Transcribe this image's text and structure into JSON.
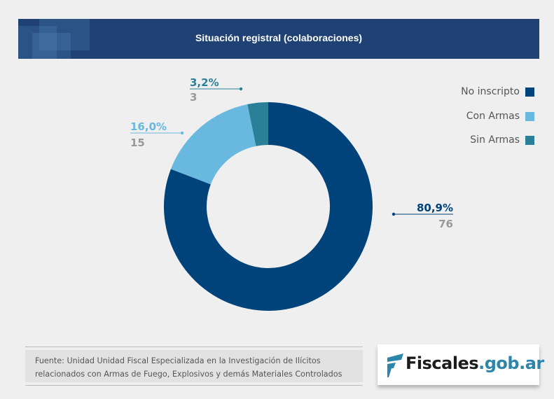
{
  "header": {
    "title": "Situación registral (colaboraciones)"
  },
  "chart_data": {
    "type": "pie",
    "variant": "donut",
    "title": "Situación registral (colaboraciones)",
    "legend_position": "top-right",
    "slices": [
      {
        "name": "No inscripto",
        "value": 76,
        "percent_label": "80,9%",
        "count_label": "76",
        "color": "#00427a"
      },
      {
        "name": "Con Armas",
        "value": 15,
        "percent_label": "16,0%",
        "count_label": "15",
        "color": "#69b8e0"
      },
      {
        "name": "Sin Armas",
        "value": 3,
        "percent_label": "3,2%",
        "count_label": "3",
        "color": "#2a8098"
      }
    ],
    "count_label_color": "#999999"
  },
  "legend": {
    "items": [
      {
        "label": "No inscripto",
        "color": "#00427a"
      },
      {
        "label": "Con Armas",
        "color": "#69b8e0"
      },
      {
        "label": "Sin Armas",
        "color": "#2a8098"
      }
    ]
  },
  "source": {
    "line1": "Fuente: Unidad Unidad Fiscal Especializada en la Investigación de Ilícitos",
    "line2": "relacionados con Armas de Fuego, Explosivos y demás Materiales Controlados"
  },
  "logo": {
    "part1": "Fiscales",
    "part2": ".gob.ar",
    "icon": "fiscales-f-logo-icon"
  }
}
